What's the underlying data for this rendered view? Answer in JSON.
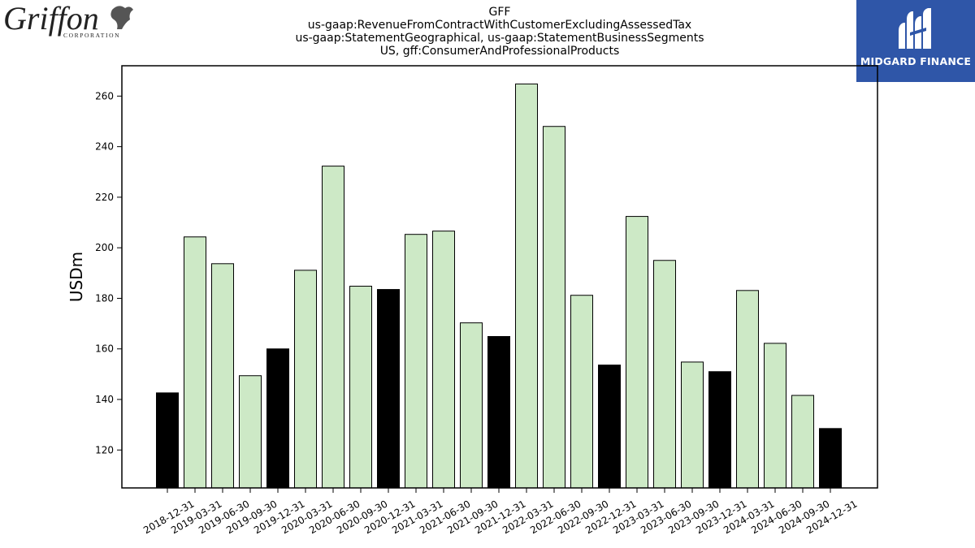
{
  "header": {
    "title_lines": [
      "GFF",
      "us-gaap:RevenueFromContractWithCustomerExcludingAssessedTax",
      "us-gaap:StatementGeographical, us-gaap:StatementBusinessSegments",
      "US, gff:ConsumerAndProfessionalProducts"
    ]
  },
  "logos": {
    "left": {
      "name": "Griffon",
      "tagline": "CORPORATION"
    },
    "right": {
      "name": "MIDGARD FINANCE",
      "color": "#2f56a8"
    }
  },
  "chart_data": {
    "type": "bar",
    "title": "GFF",
    "ylabel": "USDm",
    "xlabel": "",
    "ylim": [
      105,
      272
    ],
    "yticks": [
      120,
      140,
      160,
      180,
      200,
      220,
      240,
      260
    ],
    "grid": false,
    "colors": {
      "annual": "#000000",
      "quarterly": "#cde9c6",
      "edge": "#000000"
    },
    "categories": [
      "2018-12-31",
      "2019-03-31",
      "2019-06-30",
      "2019-09-30",
      "2019-12-31",
      "2020-03-31",
      "2020-06-30",
      "2020-09-30",
      "2020-12-31",
      "2021-03-31",
      "2021-06-30",
      "2021-09-30",
      "2021-12-31",
      "2022-03-31",
      "2022-06-30",
      "2022-09-30",
      "2022-12-31",
      "2023-03-31",
      "2023-06-30",
      "2023-09-30",
      "2023-12-31",
      "2024-03-31",
      "2024-06-30",
      "2024-09-30",
      "2024-12-31"
    ],
    "values": [
      142.6,
      204.3,
      193.7,
      149.4,
      160.0,
      191.1,
      232.3,
      184.8,
      183.5,
      205.3,
      206.6,
      170.3,
      164.9,
      264.8,
      248.0,
      181.2,
      153.6,
      212.4,
      195.0,
      154.8,
      151.0,
      183.1,
      162.2,
      141.6,
      128.5
    ],
    "highlight": [
      true,
      false,
      false,
      false,
      true,
      false,
      false,
      false,
      true,
      false,
      false,
      false,
      true,
      false,
      false,
      false,
      true,
      false,
      false,
      false,
      true,
      false,
      false,
      false,
      true
    ]
  }
}
